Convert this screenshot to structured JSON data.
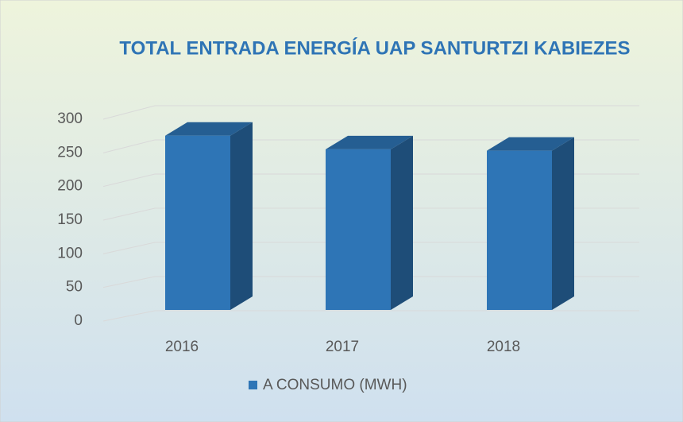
{
  "chart_data": {
    "type": "bar3d",
    "title": "TOTAL ENTRADA ENERGÍA UAP SANTURTZI KABIEZES",
    "categories": [
      "2016",
      "2017",
      "2018"
    ],
    "series": [
      {
        "name": "A CONSUMO (MWH)",
        "color": "#2e75b6",
        "values": [
          255,
          235,
          233
        ]
      }
    ],
    "ylim": [
      0,
      300
    ],
    "yticks": [
      0,
      50,
      100,
      150,
      200,
      250,
      300
    ],
    "grid": true,
    "legend": "bottom"
  }
}
